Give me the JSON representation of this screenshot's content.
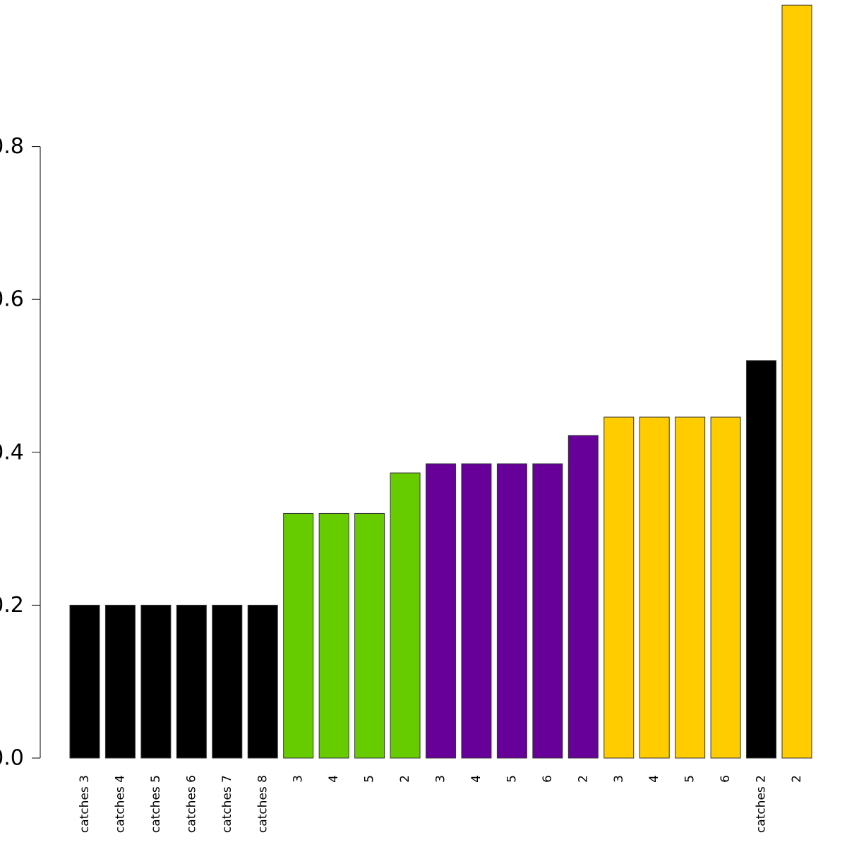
{
  "chart_data": {
    "type": "bar",
    "title": "",
    "xlabel": "",
    "ylabel": "",
    "ylim": [
      0,
      1.0
    ],
    "grid": false,
    "legend": "none",
    "yticks": [
      0.0,
      0.2,
      0.4,
      0.6,
      0.8
    ],
    "ytick_labels": [
      "0.0",
      "0.2",
      "0.4",
      "0.6",
      "0.8"
    ],
    "categories": [
      "catches 3",
      "catches 4",
      "catches 5",
      "catches 6",
      "catches 7",
      "catches 8",
      "3",
      "4",
      "5",
      "2",
      "3",
      "4",
      "5",
      "6",
      "2",
      "3",
      "4",
      "5",
      "6",
      "catches 2",
      "2"
    ],
    "values": [
      0.2,
      0.2,
      0.2,
      0.2,
      0.2,
      0.2,
      0.32,
      0.32,
      0.32,
      0.373,
      0.385,
      0.385,
      0.385,
      0.385,
      0.422,
      0.446,
      0.446,
      0.446,
      0.446,
      0.52,
      0.985
    ],
    "colors": [
      "#000000",
      "#000000",
      "#000000",
      "#000000",
      "#000000",
      "#000000",
      "#66cc00",
      "#66cc00",
      "#66cc00",
      "#66cc00",
      "#660099",
      "#660099",
      "#660099",
      "#660099",
      "#660099",
      "#ffcc00",
      "#ffcc00",
      "#ffcc00",
      "#ffcc00",
      "#000000",
      "#ffcc00"
    ]
  }
}
